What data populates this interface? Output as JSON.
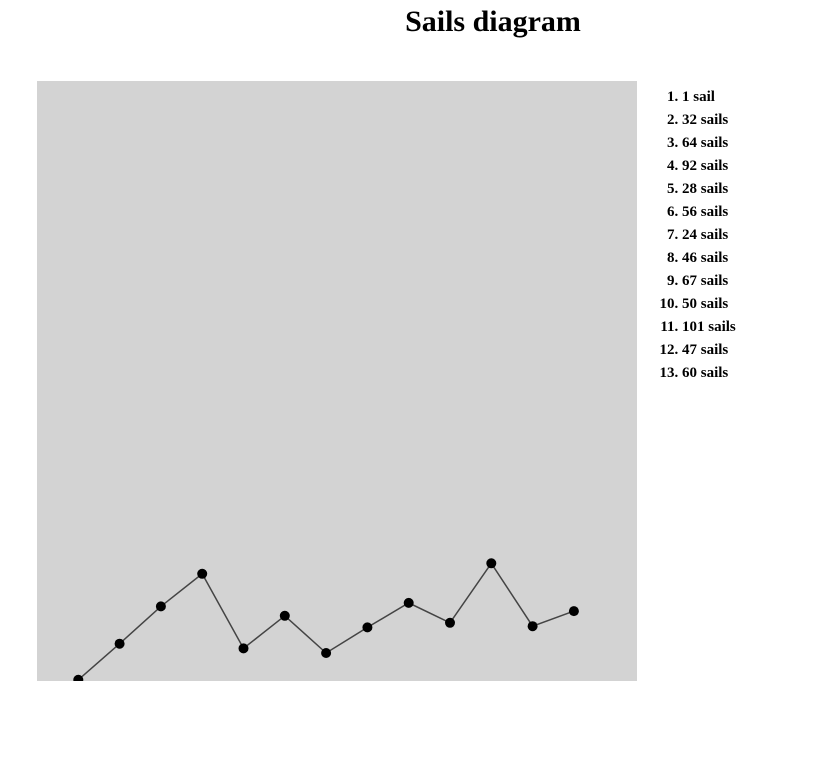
{
  "title": "Sails diagram",
  "legend": {
    "items": [
      "1 sail",
      "32 sails",
      "64 sails",
      "92 sails",
      "28 sails",
      "56 sails",
      "24 sails",
      "46 sails",
      "67 sails",
      "50 sails",
      "101 sails",
      "47 sails",
      "60 sails"
    ]
  },
  "chart_data": {
    "type": "line",
    "x": [
      1,
      2,
      3,
      4,
      5,
      6,
      7,
      8,
      9,
      10,
      11,
      12,
      13
    ],
    "values": [
      1,
      32,
      64,
      92,
      28,
      56,
      24,
      46,
      67,
      50,
      101,
      47,
      60
    ],
    "title": "Sails diagram",
    "xlabel": "",
    "ylabel": "",
    "grid": false,
    "legend_position": "right",
    "colors": {
      "plot_background": "#d3d3d3",
      "line": "#444444",
      "marker": "#000000"
    }
  }
}
